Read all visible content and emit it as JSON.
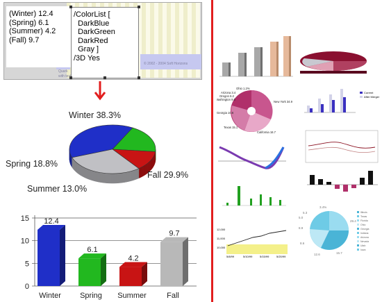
{
  "editor": {
    "data_text": "(Winter) 12.4\n(Spring) 6.1\n(Summer) 4.2\n(Fall) 9.7",
    "options_text": "/ColorList [\n  DarkBlue\n  DarkGreen\n  DarkRed\n  Gray ]\n/3D Yes",
    "faint_left": "Quark\nwith text",
    "faint_right": "© 2002 - 2004 Soft Horizons"
  },
  "pie_labels": {
    "winter": "Winter 38.3%",
    "spring": "Spring 18.8%",
    "summer": "Summer 13.0%",
    "fall": "Fall 29.9%"
  },
  "colors": {
    "winter": "#1f2fc8",
    "spring": "#22b81f",
    "summer": "#c81414",
    "fall": "#c0c0c4",
    "divider": "#e21e1e",
    "arrow": "#e21e1e"
  },
  "chart_data": [
    {
      "type": "pie",
      "categories": [
        "Winter",
        "Spring",
        "Summer",
        "Fall"
      ],
      "values": [
        38.3,
        18.8,
        13.0,
        29.9
      ],
      "title": ""
    },
    {
      "type": "bar",
      "categories": [
        "Winter",
        "Spring",
        "Summer",
        "Fall"
      ],
      "values": [
        12.4,
        6.1,
        4.2,
        9.7
      ],
      "value_labels": [
        "12.4",
        "6.1",
        "4.2",
        "9.7"
      ],
      "yticks": [
        "0",
        "5",
        "10",
        "15"
      ],
      "ylim": [
        0,
        15
      ],
      "title": "",
      "xlabel": "",
      "ylabel": ""
    }
  ],
  "gallery": {
    "pie_a": [
      "Ohio 1.2%",
      "Arizona 3.4",
      "Oregon 6.2",
      "Washington 9.0",
      "New York 34.9",
      "Georgia 10.6",
      "Texas 15.1",
      "California 16.7"
    ],
    "pie_b": [
      "3.4%",
      "5.3",
      "5.0",
      "8.9",
      "29.4",
      "8.6",
      "12.6",
      "15.7"
    ],
    "legend_b": [
      "Illinois",
      "Texas",
      "Florida",
      "Ohio",
      "Georgia",
      "Indiana",
      "Arizona",
      "Nevada",
      "Utah",
      "Iowa"
    ],
    "legend_bar": [
      "Current",
      "After Merger"
    ],
    "bars_green_x": [
      "'95",
      "'96",
      "'97",
      "'98",
      "'99",
      "'00",
      "'01"
    ],
    "line_yellow_y": [
      "12,000",
      "11,000",
      "10,000"
    ],
    "line_yellow_x": [
      "5/8/99",
      "5/10/99",
      "5/15/99",
      "5/20/99"
    ]
  }
}
